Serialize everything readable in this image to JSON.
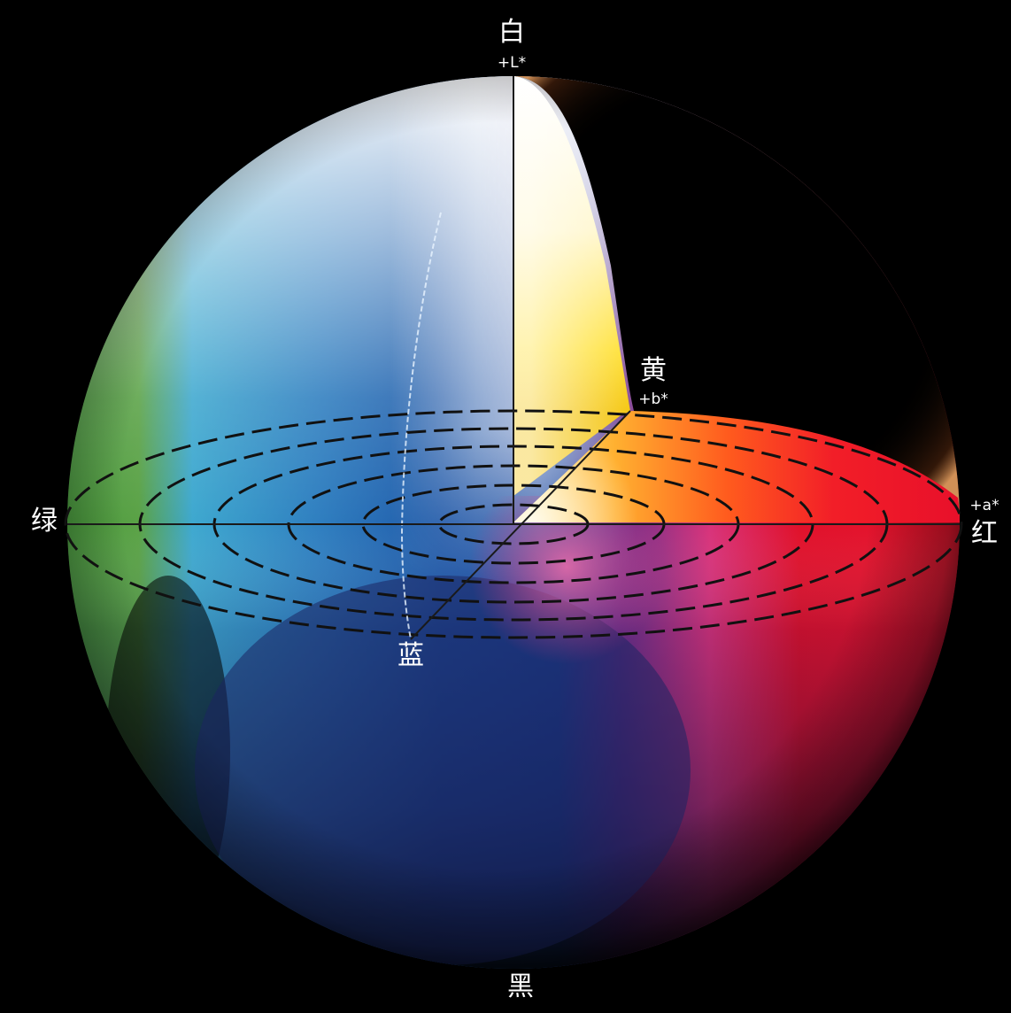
{
  "labels": {
    "white": "白",
    "black": "黑",
    "green": "绿",
    "red": "红",
    "yellow": "黄",
    "blue": "蓝",
    "l_axis": "+L*",
    "a_axis": "+a*",
    "b_axis": "+b*"
  },
  "colors": {
    "background": "#000000",
    "white": "#f2f4f6",
    "green": "#4a9a3e",
    "cyan": "#3ea8cf",
    "blue": "#1d4ea3",
    "navy": "#1c2463",
    "red": "#e0102a",
    "orange": "#ff7a1e",
    "yellow": "#ffd21e",
    "magenta": "#d8327a",
    "axis_line": "#1a1a1a",
    "ring_line": "#111111"
  }
}
